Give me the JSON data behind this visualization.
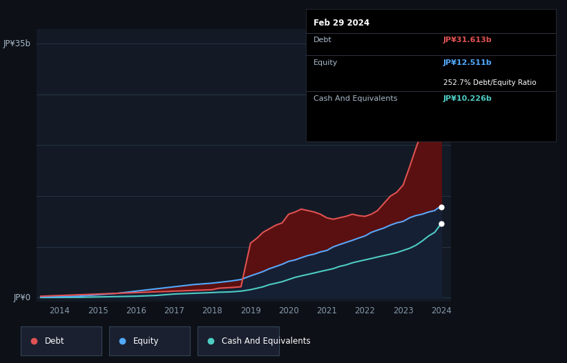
{
  "background_color": "#0d1117",
  "plot_bg_color": "#131a25",
  "grid_color": "#263345",
  "years": [
    2013.5,
    2014.0,
    2014.5,
    2015.0,
    2015.5,
    2016.0,
    2016.5,
    2017.0,
    2017.5,
    2018.0,
    2018.08,
    2018.17,
    2018.5,
    2018.75,
    2019.0,
    2019.17,
    2019.33,
    2019.5,
    2019.67,
    2019.83,
    2020.0,
    2020.17,
    2020.33,
    2020.5,
    2020.67,
    2020.83,
    2021.0,
    2021.17,
    2021.33,
    2021.5,
    2021.67,
    2021.83,
    2022.0,
    2022.17,
    2022.33,
    2022.5,
    2022.67,
    2022.83,
    2023.0,
    2023.17,
    2023.33,
    2023.5,
    2023.67,
    2023.83,
    2023.9,
    2024.0
  ],
  "debt": [
    0.2,
    0.3,
    0.4,
    0.5,
    0.6,
    0.7,
    0.8,
    0.9,
    1.0,
    1.1,
    1.2,
    1.3,
    1.4,
    1.5,
    7.5,
    8.2,
    9.0,
    9.5,
    10.0,
    10.3,
    11.5,
    11.8,
    12.2,
    12.0,
    11.8,
    11.5,
    11.0,
    10.8,
    11.0,
    11.2,
    11.5,
    11.3,
    11.2,
    11.5,
    12.0,
    13.0,
    14.0,
    14.5,
    15.5,
    18.0,
    20.5,
    23.0,
    26.0,
    29.5,
    31.613,
    31.613
  ],
  "equity": [
    0.1,
    0.15,
    0.2,
    0.4,
    0.6,
    0.9,
    1.2,
    1.5,
    1.8,
    2.0,
    2.05,
    2.1,
    2.3,
    2.5,
    3.0,
    3.3,
    3.6,
    4.0,
    4.3,
    4.6,
    5.0,
    5.2,
    5.5,
    5.8,
    6.0,
    6.3,
    6.5,
    7.0,
    7.3,
    7.6,
    7.9,
    8.2,
    8.5,
    9.0,
    9.3,
    9.6,
    10.0,
    10.3,
    10.5,
    11.0,
    11.3,
    11.5,
    11.8,
    12.0,
    12.3,
    12.511
  ],
  "cash": [
    0.02,
    0.03,
    0.05,
    0.1,
    0.15,
    0.2,
    0.3,
    0.5,
    0.6,
    0.7,
    0.72,
    0.75,
    0.8,
    0.9,
    1.1,
    1.3,
    1.5,
    1.8,
    2.0,
    2.2,
    2.5,
    2.8,
    3.0,
    3.2,
    3.4,
    3.6,
    3.8,
    4.0,
    4.3,
    4.5,
    4.8,
    5.0,
    5.2,
    5.4,
    5.6,
    5.8,
    6.0,
    6.2,
    6.5,
    6.8,
    7.2,
    7.8,
    8.5,
    9.0,
    9.5,
    10.226
  ],
  "debt_color": "#e05252",
  "equity_color": "#52aaff",
  "cash_color": "#4ecdc4",
  "debt_fill": "#5a1010",
  "equity_fill": "#162035",
  "cash_fill": "#152828",
  "ylabel_top": "JP¥35b",
  "ylabel_bottom": "JP¥0",
  "xticks": [
    2014,
    2015,
    2016,
    2017,
    2018,
    2019,
    2020,
    2021,
    2022,
    2023,
    2024
  ],
  "xlim": [
    2013.4,
    2024.25
  ],
  "ylim": [
    -0.5,
    37
  ],
  "tooltip_title": "Feb 29 2024",
  "tooltip_debt_label": "Debt",
  "tooltip_debt_value": "JP¥31.613b",
  "tooltip_equity_label": "Equity",
  "tooltip_equity_value": "JP¥12.511b",
  "tooltip_ratio": "252.7% Debt/Equity Ratio",
  "tooltip_cash_label": "Cash And Equivalents",
  "tooltip_cash_value": "JP¥10.226b",
  "legend_debt": "Debt",
  "legend_equity": "Equity",
  "legend_cash": "Cash And Equivalents"
}
